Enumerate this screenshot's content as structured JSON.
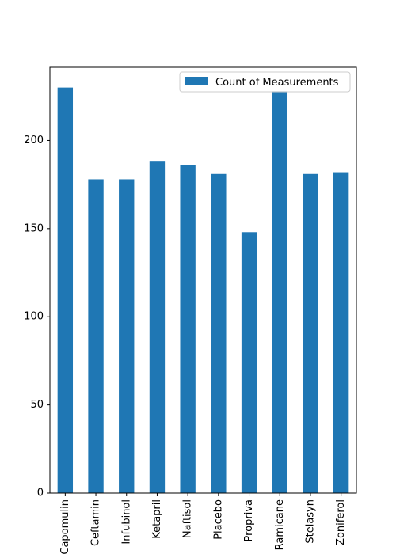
{
  "chart_data": {
    "type": "bar",
    "categories": [
      "Capomulin",
      "Ceftamin",
      "Infubinol",
      "Ketapril",
      "Naftisol",
      "Placebo",
      "Propriva",
      "Ramicane",
      "Stelasyn",
      "Zoniferol"
    ],
    "series": [
      {
        "name": "Count of Measurements",
        "values": [
          230,
          178,
          178,
          188,
          186,
          181,
          148,
          228,
          181,
          182
        ],
        "color": "#1f77b4"
      }
    ],
    "title": "",
    "xlabel": "",
    "ylabel": "",
    "ylim": [
      0,
      241.5
    ],
    "yticks": [
      0,
      50,
      100,
      150,
      200
    ],
    "grid": false,
    "legend_position": "top-right"
  }
}
